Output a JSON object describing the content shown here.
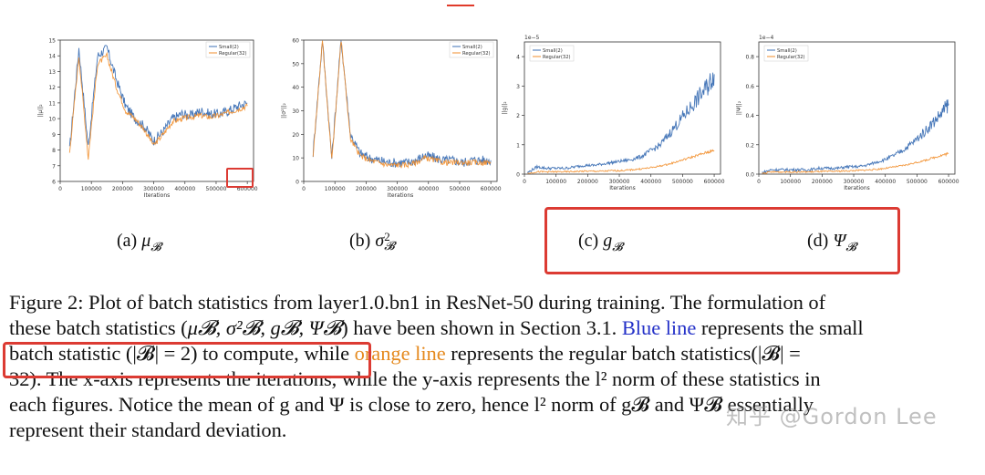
{
  "chart_data": [
    {
      "type": "line",
      "panel": "a",
      "xlabel": "Iterations",
      "ylabel": "||μ||₂",
      "xlim": [
        0,
        620000
      ],
      "ylim": [
        6,
        15
      ],
      "xticks": [
        "0",
        "100000",
        "200000",
        "300000",
        "400000",
        "500000",
        "600000"
      ],
      "yticks": [
        "6",
        "7",
        "8",
        "9",
        "10",
        "11",
        "12",
        "13",
        "14",
        "15"
      ],
      "legend": "top-right",
      "series": [
        {
          "name": "Small(2)",
          "color": "#3b6fb4",
          "x": [
            30000,
            60000,
            90000,
            120000,
            150000,
            180000,
            210000,
            240000,
            270000,
            300000,
            330000,
            360000,
            390000,
            420000,
            450000,
            480000,
            510000,
            540000,
            570000,
            600000
          ],
          "y": [
            8.0,
            14.5,
            8.2,
            14.0,
            14.5,
            12.5,
            10.8,
            10.0,
            9.5,
            8.6,
            9.2,
            10.0,
            10.3,
            10.2,
            10.5,
            10.3,
            10.3,
            10.5,
            10.8,
            11.0
          ]
        },
        {
          "name": "Regular(32)",
          "color": "#f28e2b",
          "x": [
            30000,
            60000,
            90000,
            120000,
            150000,
            180000,
            210000,
            240000,
            270000,
            300000,
            330000,
            360000,
            390000,
            420000,
            450000,
            480000,
            510000,
            540000,
            570000,
            600000
          ],
          "y": [
            7.8,
            14.0,
            7.5,
            13.5,
            14.0,
            12.0,
            10.5,
            10.0,
            9.3,
            8.3,
            9.0,
            9.8,
            10.0,
            10.1,
            10.2,
            10.1,
            10.2,
            10.4,
            10.6,
            10.8
          ]
        }
      ]
    },
    {
      "type": "line",
      "panel": "b",
      "xlabel": "Iterations",
      "ylabel": "||σ²||₂",
      "xlim": [
        0,
        620000
      ],
      "ylim": [
        0,
        60
      ],
      "xticks": [
        "0",
        "100000",
        "200000",
        "300000",
        "400000",
        "500000",
        "600000"
      ],
      "yticks": [
        "0",
        "10",
        "20",
        "30",
        "40",
        "50",
        "60"
      ],
      "legend": "top-right",
      "series": [
        {
          "name": "Small(2)",
          "color": "#3b6fb4",
          "x": [
            30000,
            60000,
            90000,
            120000,
            150000,
            180000,
            210000,
            240000,
            270000,
            300000,
            330000,
            360000,
            390000,
            420000,
            450000,
            480000,
            510000,
            540000,
            570000,
            600000
          ],
          "y": [
            12,
            60,
            10,
            60,
            20,
            12,
            10,
            9,
            8,
            8,
            8,
            9,
            11,
            10,
            9,
            9,
            8,
            9,
            9,
            9
          ]
        },
        {
          "name": "Regular(32)",
          "color": "#f28e2b",
          "x": [
            30000,
            60000,
            90000,
            120000,
            150000,
            180000,
            210000,
            240000,
            270000,
            300000,
            330000,
            360000,
            390000,
            420000,
            450000,
            480000,
            510000,
            540000,
            570000,
            600000
          ],
          "y": [
            11,
            60,
            9,
            60,
            18,
            11,
            9,
            8,
            7,
            7,
            7,
            8,
            10,
            9,
            8,
            8,
            8,
            8,
            8,
            8
          ]
        }
      ]
    },
    {
      "type": "line",
      "panel": "c",
      "xlabel": "Iterations",
      "ylabel": "||g||₂",
      "yscale_label": "1e−5",
      "xlim": [
        0,
        620000
      ],
      "ylim": [
        0,
        4.5
      ],
      "xticks": [
        "0",
        "100000",
        "200000",
        "300000",
        "400000",
        "500000",
        "600000"
      ],
      "yticks": [
        "0",
        "1",
        "2",
        "3",
        "4"
      ],
      "legend": "top-left",
      "series": [
        {
          "name": "Small(2)",
          "color": "#3b6fb4",
          "x": [
            10000,
            40000,
            70000,
            100000,
            130000,
            160000,
            190000,
            220000,
            250000,
            280000,
            310000,
            340000,
            370000,
            400000,
            430000,
            460000,
            490000,
            520000,
            550000,
            580000,
            600000
          ],
          "y": [
            0.05,
            0.25,
            0.2,
            0.2,
            0.2,
            0.25,
            0.3,
            0.3,
            0.35,
            0.4,
            0.45,
            0.5,
            0.6,
            0.8,
            1.0,
            1.4,
            1.8,
            2.2,
            2.6,
            3.0,
            3.4
          ]
        },
        {
          "name": "Regular(32)",
          "color": "#f28e2b",
          "x": [
            10000,
            40000,
            70000,
            100000,
            130000,
            160000,
            190000,
            220000,
            250000,
            280000,
            310000,
            340000,
            370000,
            400000,
            430000,
            460000,
            490000,
            520000,
            550000,
            580000,
            600000
          ],
          "y": [
            0.02,
            0.08,
            0.08,
            0.08,
            0.08,
            0.09,
            0.1,
            0.1,
            0.1,
            0.12,
            0.12,
            0.15,
            0.18,
            0.22,
            0.28,
            0.35,
            0.45,
            0.55,
            0.65,
            0.75,
            0.8
          ]
        }
      ]
    },
    {
      "type": "line",
      "panel": "d",
      "xlabel": "Iterations",
      "ylabel": "||Ψ||₂",
      "yscale_label": "1e−4",
      "xlim": [
        0,
        620000
      ],
      "ylim": [
        0,
        0.9
      ],
      "xticks": [
        "0",
        "100000",
        "200000",
        "300000",
        "400000",
        "500000",
        "600000"
      ],
      "yticks": [
        "0.0",
        "0.2",
        "0.4",
        "0.6",
        "0.8"
      ],
      "legend": "top-left",
      "series": [
        {
          "name": "Small(2)",
          "color": "#3b6fb4",
          "x": [
            10000,
            40000,
            70000,
            100000,
            130000,
            160000,
            190000,
            220000,
            250000,
            280000,
            310000,
            340000,
            370000,
            400000,
            430000,
            460000,
            490000,
            520000,
            550000,
            580000,
            600000
          ],
          "y": [
            0.01,
            0.03,
            0.03,
            0.03,
            0.03,
            0.03,
            0.04,
            0.04,
            0.04,
            0.05,
            0.05,
            0.06,
            0.08,
            0.1,
            0.13,
            0.17,
            0.22,
            0.28,
            0.35,
            0.42,
            0.48
          ]
        },
        {
          "name": "Regular(32)",
          "color": "#f28e2b",
          "x": [
            10000,
            40000,
            70000,
            100000,
            130000,
            160000,
            190000,
            220000,
            250000,
            280000,
            310000,
            340000,
            370000,
            400000,
            430000,
            460000,
            490000,
            520000,
            550000,
            580000,
            600000
          ],
          "y": [
            0.005,
            0.015,
            0.015,
            0.015,
            0.015,
            0.015,
            0.018,
            0.018,
            0.02,
            0.022,
            0.025,
            0.028,
            0.032,
            0.04,
            0.05,
            0.06,
            0.075,
            0.09,
            0.11,
            0.13,
            0.14
          ]
        }
      ]
    }
  ],
  "subcaptions": {
    "a": {
      "label": "(a)",
      "symbol": "μ",
      "sub": "𝓑"
    },
    "b": {
      "label": "(b)",
      "symbol": "σ",
      "sup": "2",
      "sub": "𝓑"
    },
    "c": {
      "label": "(c)",
      "symbol": "g",
      "sub": "𝓑"
    },
    "d": {
      "label": "(d)",
      "symbol": "Ψ",
      "sub": "𝓑"
    }
  },
  "caption": {
    "l1": "Figure 2: Plot of batch statistics from layer1.0.bn1 in ResNet-50 during training. The formulation of",
    "l2_pre": "these batch statistics (",
    "l2_math": "μ𝓑, σ²𝓑, g𝓑, Ψ𝓑",
    "l2_mid": ") have been shown in Section 3.1. ",
    "l2_blue": "Blue line",
    "l2_post": " represents the small",
    "l3_pre": "batch statistic (|𝓑| = 2) to compute, while ",
    "l3_orange": "orange line",
    "l3_post": " represents the regular batch statistics(|𝓑| =",
    "l4": "32). The x-axis represents the iterations, while the y-axis represents the l² norm of these statistics in",
    "l5": "each figures. Notice the mean of g and Ψ is close to zero, hence l² norm of g𝓑 and Ψ𝓑 essentially",
    "l6": "represent their standard deviation."
  },
  "watermark": "知乎 @Gordon Lee"
}
